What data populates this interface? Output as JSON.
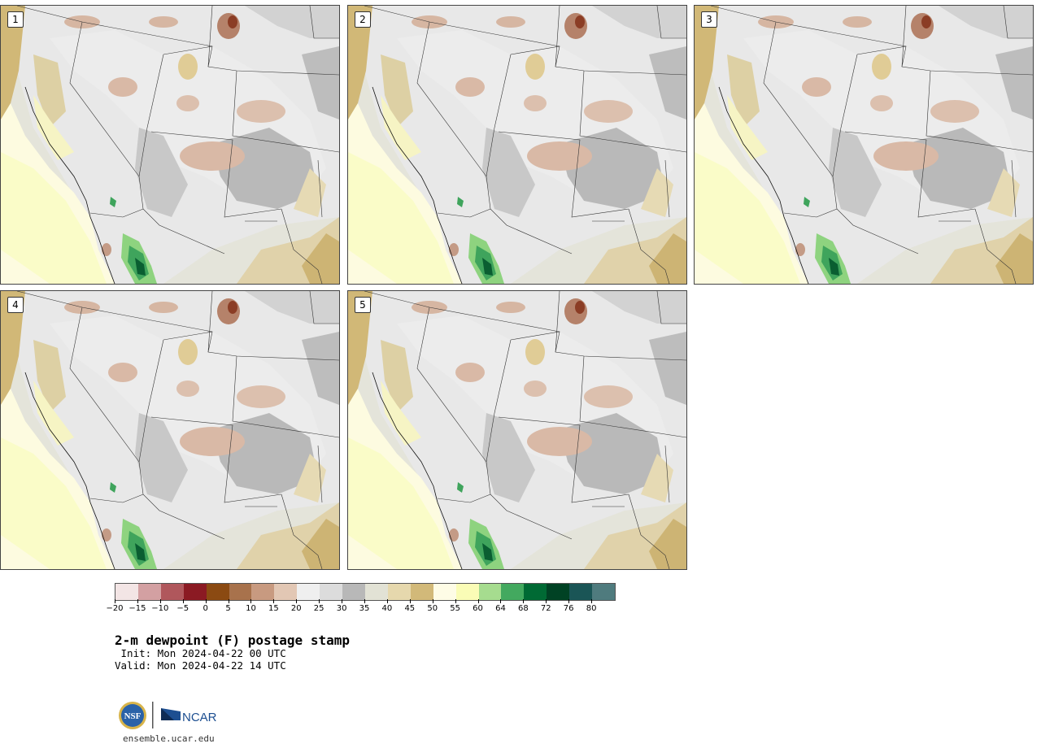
{
  "panels": [
    {
      "label": "1"
    },
    {
      "label": "2"
    },
    {
      "label": "3"
    },
    {
      "label": "4"
    },
    {
      "label": "5"
    }
  ],
  "legend": {
    "colors": [
      "#f3e5e5",
      "#d3a0a2",
      "#b0575c",
      "#8b1a23",
      "#8b4a12",
      "#a8724c",
      "#c89a80",
      "#e2c7b4",
      "#efefef",
      "#dcdcdc",
      "#b8b8b8",
      "#e2e2d5",
      "#e6d8ad",
      "#d2b979",
      "#fefce6",
      "#fafcb6",
      "#a6dc8f",
      "#43a95f",
      "#006a34",
      "#004224",
      "#1a5556",
      "#4f7b7e"
    ],
    "ticks": [
      "-20",
      "-15",
      "-10",
      "-5",
      "0",
      "5",
      "10",
      "15",
      "20",
      "25",
      "30",
      "35",
      "40",
      "45",
      "50",
      "55",
      "60",
      "64",
      "68",
      "72",
      "76",
      "80"
    ]
  },
  "title": "2-m dewpoint (F) postage stamp",
  "init": " Init: Mon 2024-04-22 00 UTC",
  "valid": "Valid: Mon 2024-04-22 14 UTC",
  "logos": {
    "nsf": "NSF",
    "ncar": "NCAR"
  },
  "site": "ensemble.ucar.edu"
}
